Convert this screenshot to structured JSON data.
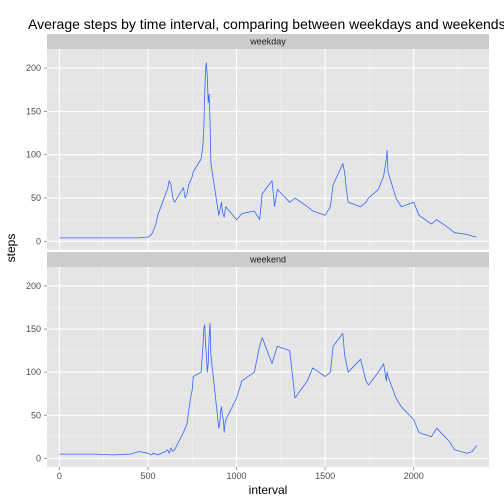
{
  "chart_data": {
    "type": "line",
    "title": "Average steps by time interval, comparing between weekdays and weekends",
    "xlabel": "interval",
    "ylabel": "steps",
    "xlim": [
      -70,
      2425
    ],
    "ylim": [
      -10,
      222
    ],
    "x_ticks": [
      0,
      500,
      1000,
      1500,
      2000
    ],
    "y_ticks": [
      0,
      50,
      100,
      150,
      200
    ],
    "grid": true,
    "line_color": "#3366FF",
    "panel_background": "#E5E5E5",
    "strip_background": "#CCCCCC",
    "panels": [
      {
        "name": "weekday",
        "x": [
          0,
          100,
          200,
          300,
          400,
          450,
          500,
          510,
          520,
          530,
          545,
          555,
          600,
          610,
          620,
          630,
          640,
          650,
          700,
          710,
          720,
          730,
          740,
          750,
          755,
          800,
          810,
          815,
          820,
          825,
          830,
          835,
          840,
          845,
          850,
          855,
          900,
          905,
          910,
          915,
          920,
          925,
          930,
          935,
          940,
          1000,
          1030,
          1100,
          1130,
          1145,
          1200,
          1215,
          1230,
          1300,
          1330,
          1400,
          1430,
          1500,
          1530,
          1545,
          1600,
          1610,
          1620,
          1630,
          1700,
          1730,
          1745,
          1800,
          1830,
          1845,
          1850,
          1855,
          1900,
          1930,
          2000,
          2030,
          2100,
          2130,
          2200,
          2230,
          2300,
          2330,
          2355
        ],
        "y": [
          4,
          4,
          4,
          4,
          4,
          4,
          5,
          6,
          8,
          12,
          20,
          30,
          55,
          60,
          70,
          65,
          50,
          45,
          62,
          50,
          55,
          65,
          70,
          75,
          80,
          95,
          110,
          130,
          170,
          200,
          206,
          190,
          160,
          170,
          140,
          90,
          30,
          35,
          40,
          45,
          35,
          30,
          28,
          35,
          40,
          25,
          32,
          35,
          25,
          55,
          70,
          40,
          60,
          45,
          50,
          40,
          35,
          30,
          40,
          65,
          90,
          80,
          60,
          45,
          40,
          45,
          50,
          60,
          75,
          95,
          105,
          80,
          50,
          40,
          45,
          30,
          20,
          25,
          15,
          10,
          8,
          6,
          5
        ]
      },
      {
        "name": "weekend",
        "x": [
          0,
          100,
          200,
          300,
          400,
          450,
          500,
          510,
          520,
          530,
          545,
          555,
          600,
          610,
          620,
          630,
          640,
          650,
          700,
          710,
          720,
          730,
          740,
          750,
          755,
          800,
          810,
          815,
          820,
          825,
          830,
          835,
          840,
          845,
          850,
          855,
          900,
          905,
          910,
          915,
          920,
          925,
          930,
          935,
          940,
          1000,
          1030,
          1100,
          1130,
          1145,
          1200,
          1215,
          1230,
          1300,
          1330,
          1400,
          1430,
          1500,
          1530,
          1545,
          1600,
          1610,
          1620,
          1630,
          1700,
          1730,
          1745,
          1800,
          1830,
          1845,
          1850,
          1855,
          1900,
          1930,
          2000,
          2030,
          2100,
          2130,
          2200,
          2230,
          2300,
          2330,
          2355
        ],
        "y": [
          5,
          5,
          5,
          4,
          5,
          8,
          6,
          5,
          4,
          6,
          5,
          4,
          8,
          10,
          6,
          12,
          8,
          10,
          30,
          35,
          40,
          55,
          70,
          80,
          95,
          100,
          130,
          150,
          155,
          130,
          120,
          100,
          110,
          140,
          157,
          120,
          35,
          40,
          55,
          60,
          50,
          45,
          30,
          40,
          45,
          70,
          90,
          100,
          130,
          140,
          110,
          120,
          130,
          125,
          70,
          90,
          105,
          95,
          100,
          130,
          145,
          120,
          110,
          100,
          115,
          90,
          85,
          100,
          110,
          90,
          100,
          95,
          70,
          60,
          45,
          30,
          25,
          35,
          20,
          10,
          6,
          8,
          15
        ]
      }
    ]
  }
}
